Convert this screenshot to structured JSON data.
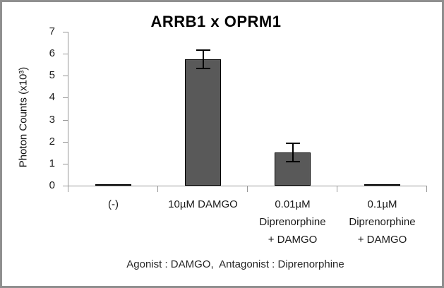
{
  "chart_data": {
    "type": "bar",
    "title": "ARRB1 x OPRM1",
    "ylabel": "Photon Counts (x10³)",
    "xlabel": "",
    "categories": [
      "(-)",
      "10µM DAMGO",
      "0.01µM\nDiprenorphine\n+ DAMGO",
      "0.1µM\nDiprenorphine\n+ DAMGO"
    ],
    "values": [
      0.07,
      5.75,
      1.5,
      0.07
    ],
    "errors": [
      0,
      0.45,
      0.45,
      0
    ],
    "ylim": [
      0,
      7
    ],
    "ytick_step": 1,
    "yticks": [
      0,
      1,
      2,
      3,
      4,
      5,
      6,
      7
    ],
    "grid": false,
    "footnote": "Agonist : DAMGO,  Antagonist : Diprenorphine",
    "bar_color": "#595959",
    "bar_border_color": "#000000",
    "error_bar_color": "#000000",
    "axis_color": "#969696",
    "text_color": "#1a1a1a",
    "frame_color": "#8f8f8f",
    "background_color": "#ffffff"
  }
}
